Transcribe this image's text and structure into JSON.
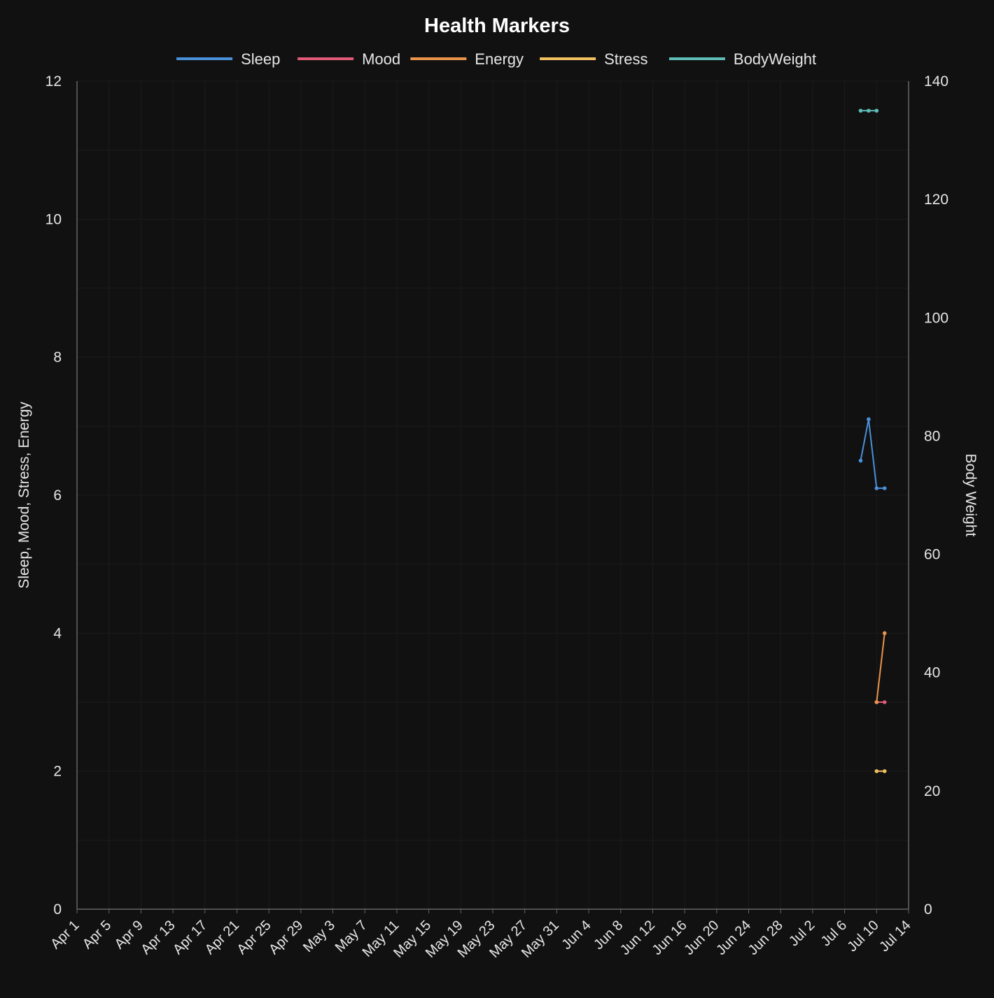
{
  "chart_data": {
    "type": "line",
    "title": "Health Markers",
    "legend_placement": "top-center",
    "grid": true,
    "x": {
      "type": "date",
      "ticks": [
        "Apr 1",
        "Apr 5",
        "Apr 9",
        "Apr 13",
        "Apr 17",
        "Apr 21",
        "Apr 25",
        "Apr 29",
        "May 3",
        "May 7",
        "May 11",
        "May 15",
        "May 19",
        "May 23",
        "May 27",
        "May 31",
        "Jun 4",
        "Jun 8",
        "Jun 12",
        "Jun 16",
        "Jun 20",
        "Jun 24",
        "Jun 28",
        "Jul 2",
        "Jul 6",
        "Jul 10",
        "Jul 14"
      ],
      "range": [
        "Apr 1",
        "Jul 14"
      ]
    },
    "y_left": {
      "label": "Sleep, Mood, Stress, Energy",
      "range": [
        0,
        12
      ],
      "ticks": [
        "0",
        "2",
        "4",
        "6",
        "8",
        "10",
        "12"
      ]
    },
    "y_right": {
      "label": "Body Weight",
      "range": [
        0,
        140
      ],
      "ticks": [
        "0",
        "20",
        "40",
        "60",
        "80",
        "100",
        "120",
        "140"
      ]
    },
    "series": [
      {
        "name": "Sleep",
        "axis": "left",
        "color": "#4a90d9",
        "points": [
          [
            "Jul 8",
            6.5
          ],
          [
            "Jul 9",
            7.1
          ],
          [
            "Jul 10",
            6.1
          ],
          [
            "Jul 11",
            6.1
          ]
        ]
      },
      {
        "name": "Mood",
        "axis": "left",
        "color": "#e05a78",
        "points": [
          [
            "Jul 10",
            3
          ],
          [
            "Jul 11",
            3
          ]
        ]
      },
      {
        "name": "Energy",
        "axis": "left",
        "color": "#e8954a",
        "points": [
          [
            "Jul 10",
            3
          ],
          [
            "Jul 11",
            4
          ]
        ]
      },
      {
        "name": "Stress",
        "axis": "left",
        "color": "#f0c060",
        "points": [
          [
            "Jul 10",
            2
          ],
          [
            "Jul 11",
            2
          ]
        ]
      },
      {
        "name": "BodyWeight",
        "axis": "right",
        "color": "#5fbcb6",
        "points": [
          [
            "Jul 8",
            135
          ],
          [
            "Jul 9",
            135
          ],
          [
            "Jul 10",
            135
          ]
        ]
      }
    ]
  }
}
